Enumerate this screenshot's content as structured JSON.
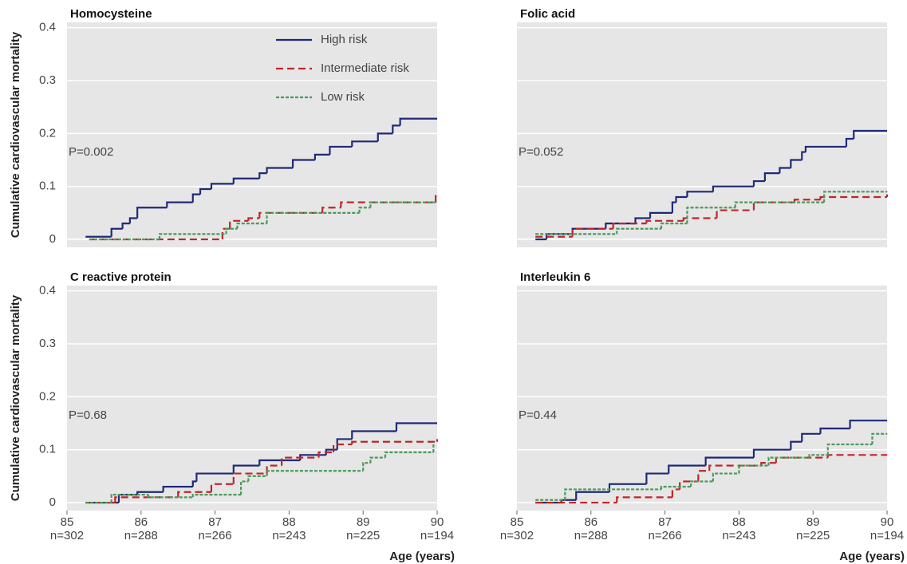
{
  "chart_data": [
    {
      "type": "step",
      "title": "Homocysteine",
      "annotation": "P=0.002",
      "ylabel": "Cumulative cardiovascular mortality",
      "xlim": [
        85,
        90
      ],
      "ylim": [
        -0.015,
        0.41
      ],
      "yticks": [
        0,
        0.1,
        0.2,
        0.3,
        0.4
      ],
      "grid": true,
      "legend": "top-center",
      "series": [
        {
          "name": "High risk",
          "color": "#1f2a78",
          "dash": "solid",
          "x": [
            85.25,
            85.6,
            85.75,
            85.85,
            85.95,
            86.35,
            86.7,
            86.8,
            86.95,
            87.25,
            87.6,
            87.7,
            88.05,
            88.35,
            88.55,
            88.85,
            89.2,
            89.4,
            89.5,
            90
          ],
          "values": [
            0.005,
            0.02,
            0.03,
            0.04,
            0.06,
            0.07,
            0.085,
            0.095,
            0.105,
            0.115,
            0.125,
            0.135,
            0.15,
            0.16,
            0.175,
            0.185,
            0.2,
            0.215,
            0.228,
            0.228
          ]
        },
        {
          "name": "Intermediate risk",
          "color": "#c0262b",
          "dash": "dashed",
          "x": [
            85.3,
            87.1,
            87.2,
            87.45,
            87.6,
            88.45,
            88.7,
            89.98,
            90
          ],
          "values": [
            0,
            0.02,
            0.035,
            0.04,
            0.05,
            0.06,
            0.07,
            0.082,
            0.082
          ]
        },
        {
          "name": "Low risk",
          "color": "#4a9a5a",
          "dash": "dotted",
          "x": [
            85.3,
            86.25,
            87.15,
            87.3,
            87.7,
            88.95,
            89.1,
            90
          ],
          "values": [
            0,
            0.01,
            0.02,
            0.03,
            0.05,
            0.06,
            0.07,
            0.07
          ]
        }
      ]
    },
    {
      "type": "step",
      "title": "Folic acid",
      "annotation": "P=0.052",
      "xlim": [
        85,
        90
      ],
      "ylim": [
        -0.015,
        0.41
      ],
      "yticks": [
        0,
        0.1,
        0.2,
        0.3,
        0.4
      ],
      "grid": true,
      "series": [
        {
          "color": "#1f2a78",
          "dash": "solid",
          "x": [
            85.25,
            85.4,
            85.75,
            86.2,
            86.6,
            86.8,
            87.1,
            87.15,
            87.3,
            87.65,
            88.2,
            88.35,
            88.55,
            88.7,
            88.85,
            88.9,
            89.45,
            89.55,
            90
          ],
          "values": [
            0,
            0.01,
            0.02,
            0.03,
            0.04,
            0.05,
            0.07,
            0.08,
            0.09,
            0.1,
            0.11,
            0.125,
            0.135,
            0.15,
            0.165,
            0.175,
            0.19,
            0.205,
            0.205
          ]
        },
        {
          "color": "#c0262b",
          "dash": "dashed",
          "x": [
            85.25,
            85.75,
            86.3,
            86.75,
            87.25,
            87.7,
            88.2,
            88.75,
            89.1,
            90
          ],
          "values": [
            0.005,
            0.02,
            0.03,
            0.035,
            0.04,
            0.055,
            0.07,
            0.075,
            0.08,
            0.085
          ]
        },
        {
          "color": "#4a9a5a",
          "dash": "dotted",
          "x": [
            85.25,
            86.35,
            86.95,
            87.3,
            87.95,
            89.15,
            90
          ],
          "values": [
            0.01,
            0.02,
            0.03,
            0.06,
            0.07,
            0.09,
            0.09
          ]
        }
      ]
    },
    {
      "type": "step",
      "title": "C reactive protein",
      "annotation": "P=0.68",
      "ylabel": "Cumulative cardiovascular mortality",
      "xlabel": "Age (years)",
      "xlim": [
        85,
        90
      ],
      "ylim": [
        -0.015,
        0.41
      ],
      "xticks": [
        85,
        86,
        87,
        88,
        89,
        90
      ],
      "at_risk": [
        "n=302",
        "n=288",
        "n=266",
        "n=243",
        "n=225",
        "n=194"
      ],
      "yticks": [
        0,
        0.1,
        0.2,
        0.3,
        0.4
      ],
      "grid": true,
      "series": [
        {
          "color": "#1f2a78",
          "dash": "solid",
          "x": [
            85.25,
            85.7,
            85.95,
            86.3,
            86.7,
            86.75,
            87.25,
            87.6,
            88.15,
            88.5,
            88.65,
            88.85,
            89.45,
            90
          ],
          "values": [
            0,
            0.015,
            0.02,
            0.03,
            0.04,
            0.055,
            0.07,
            0.08,
            0.09,
            0.1,
            0.12,
            0.135,
            0.15,
            0.15
          ]
        },
        {
          "color": "#c0262b",
          "dash": "dashed",
          "x": [
            85.25,
            85.65,
            86.5,
            86.95,
            87.25,
            87.7,
            87.9,
            88.4,
            88.6,
            88.85,
            90
          ],
          "values": [
            0,
            0.01,
            0.02,
            0.035,
            0.055,
            0.07,
            0.085,
            0.095,
            0.11,
            0.115,
            0.12
          ]
        },
        {
          "color": "#4a9a5a",
          "dash": "dotted",
          "x": [
            85.25,
            85.6,
            86.1,
            86.7,
            87.35,
            87.45,
            87.7,
            89.0,
            89.1,
            89.3,
            89.95
          ],
          "values": [
            0,
            0.015,
            0.01,
            0.015,
            0.04,
            0.05,
            0.06,
            0.075,
            0.085,
            0.095,
            0.11
          ]
        }
      ]
    },
    {
      "type": "step",
      "title": "Interleukin 6",
      "annotation": "P=0.44",
      "xlabel": "Age (years)",
      "xlim": [
        85,
        90
      ],
      "ylim": [
        -0.015,
        0.41
      ],
      "xticks": [
        85,
        86,
        87,
        88,
        89,
        90
      ],
      "at_risk": [
        "n=302",
        "n=288",
        "n=266",
        "n=243",
        "n=225",
        "n=194"
      ],
      "yticks": [
        0,
        0.1,
        0.2,
        0.3,
        0.4
      ],
      "grid": true,
      "series": [
        {
          "color": "#1f2a78",
          "dash": "solid",
          "x": [
            85.25,
            85.6,
            85.8,
            86.25,
            86.75,
            87.05,
            87.55,
            88.2,
            88.7,
            88.85,
            89.1,
            89.5,
            90
          ],
          "values": [
            0,
            0.005,
            0.02,
            0.035,
            0.055,
            0.07,
            0.085,
            0.1,
            0.115,
            0.13,
            0.14,
            0.155,
            0.155
          ]
        },
        {
          "color": "#c0262b",
          "dash": "dashed",
          "x": [
            85.25,
            86.35,
            87.1,
            87.2,
            87.45,
            87.6,
            88.3,
            88.5,
            89.2,
            90
          ],
          "values": [
            0,
            0.01,
            0.025,
            0.04,
            0.06,
            0.07,
            0.075,
            0.085,
            0.09,
            0.09
          ]
        },
        {
          "color": "#4a9a5a",
          "dash": "dotted",
          "x": [
            85.25,
            85.65,
            86.95,
            87.35,
            87.65,
            88.0,
            88.4,
            88.95,
            89.2,
            89.8,
            90
          ],
          "values": [
            0.005,
            0.025,
            0.03,
            0.04,
            0.055,
            0.07,
            0.085,
            0.09,
            0.11,
            0.13,
            0.13
          ]
        }
      ]
    }
  ]
}
